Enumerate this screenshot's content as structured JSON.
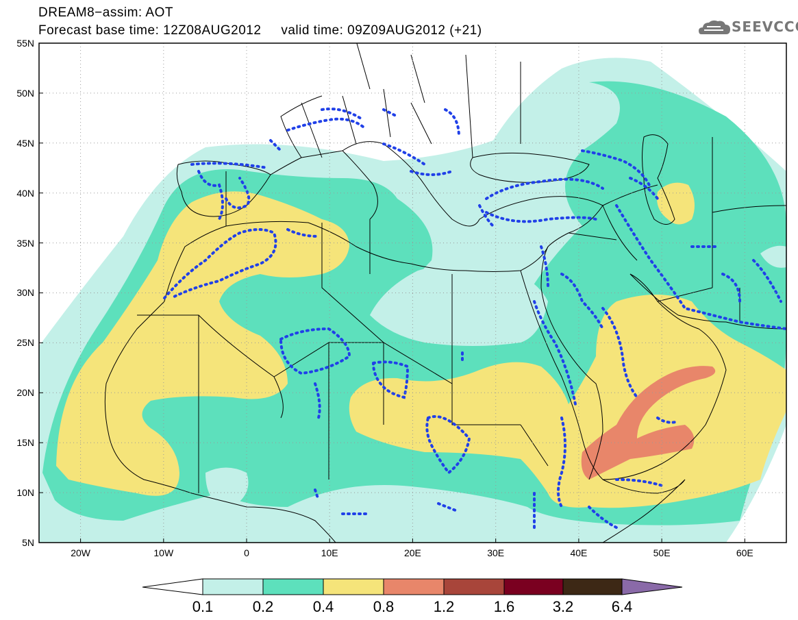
{
  "header": {
    "title_line1": "DREAM8−assim: AOT",
    "title_line2": "Forecast base time: 12Z08AUG2012     valid time: 09Z09AUG2012 (+21)",
    "logo_text": "SEEVCCC",
    "logo_icon": "cloud-icon"
  },
  "map": {
    "lon_range": [
      -25,
      65
    ],
    "lat_range": [
      5,
      55
    ],
    "lon_ticks": [
      "20W",
      "10W",
      "0",
      "10E",
      "20E",
      "30E",
      "40E",
      "50E",
      "60E"
    ],
    "lat_ticks": [
      "55N",
      "50N",
      "45N",
      "40N",
      "35N",
      "30N",
      "25N",
      "20N",
      "15N",
      "10N",
      "5N"
    ],
    "gridlines": "dotted"
  },
  "colorbar": {
    "labels": [
      "0.1",
      "0.2",
      "0.4",
      "0.8",
      "1.2",
      "1.6",
      "3.2",
      "6.4"
    ],
    "colors": [
      "#ffffff",
      "#c3f0e8",
      "#5de0bc",
      "#f5e47a",
      "#e8866a",
      "#a8453a",
      "#7a0020",
      "#3d2815",
      "#8a6aa8"
    ]
  }
}
